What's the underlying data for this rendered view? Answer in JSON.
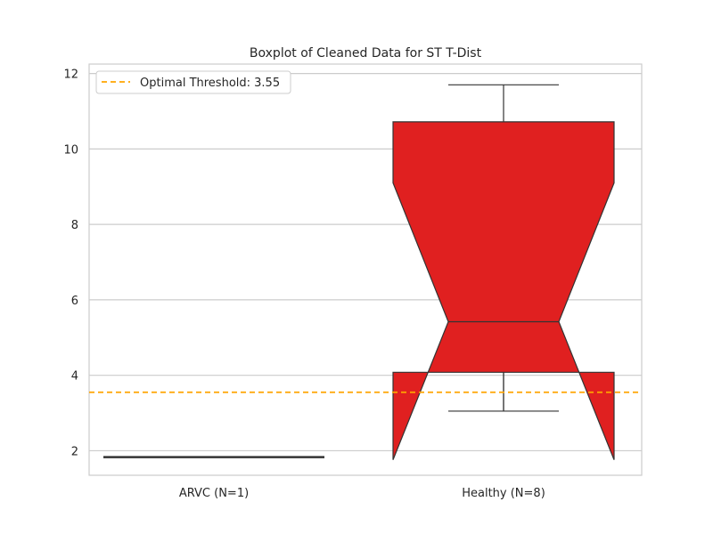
{
  "chart_data": {
    "type": "boxplot",
    "title": "Boxplot of Cleaned Data for ST T-Dist",
    "xlabel": "",
    "ylabel": "",
    "categories": [
      "ARVC (N=1)",
      "Healthy (N=8)"
    ],
    "boxes": [
      {
        "category": "ARVC (N=1)",
        "whisker_low": 1.83,
        "q1": 1.83,
        "median": 1.83,
        "q3": 1.83,
        "whisker_high": 1.83,
        "notch_low": 1.83,
        "notch_high": 1.83,
        "color": "#333333"
      },
      {
        "category": "Healthy (N=8)",
        "whisker_low": 3.05,
        "q1": 4.08,
        "median": 5.42,
        "q3": 10.72,
        "whisker_high": 11.7,
        "notch_low": 1.76,
        "notch_high": 9.1,
        "color": "#e02020"
      }
    ],
    "threshold": {
      "label": "Optimal Threshold: 3.55",
      "value": 3.55,
      "color": "#ffa500",
      "style": "dashed"
    },
    "y_ticks": [
      2,
      4,
      6,
      8,
      10,
      12
    ],
    "ylim": [
      1.35,
      12.25
    ],
    "grid": true,
    "legend_position": "top-left"
  }
}
